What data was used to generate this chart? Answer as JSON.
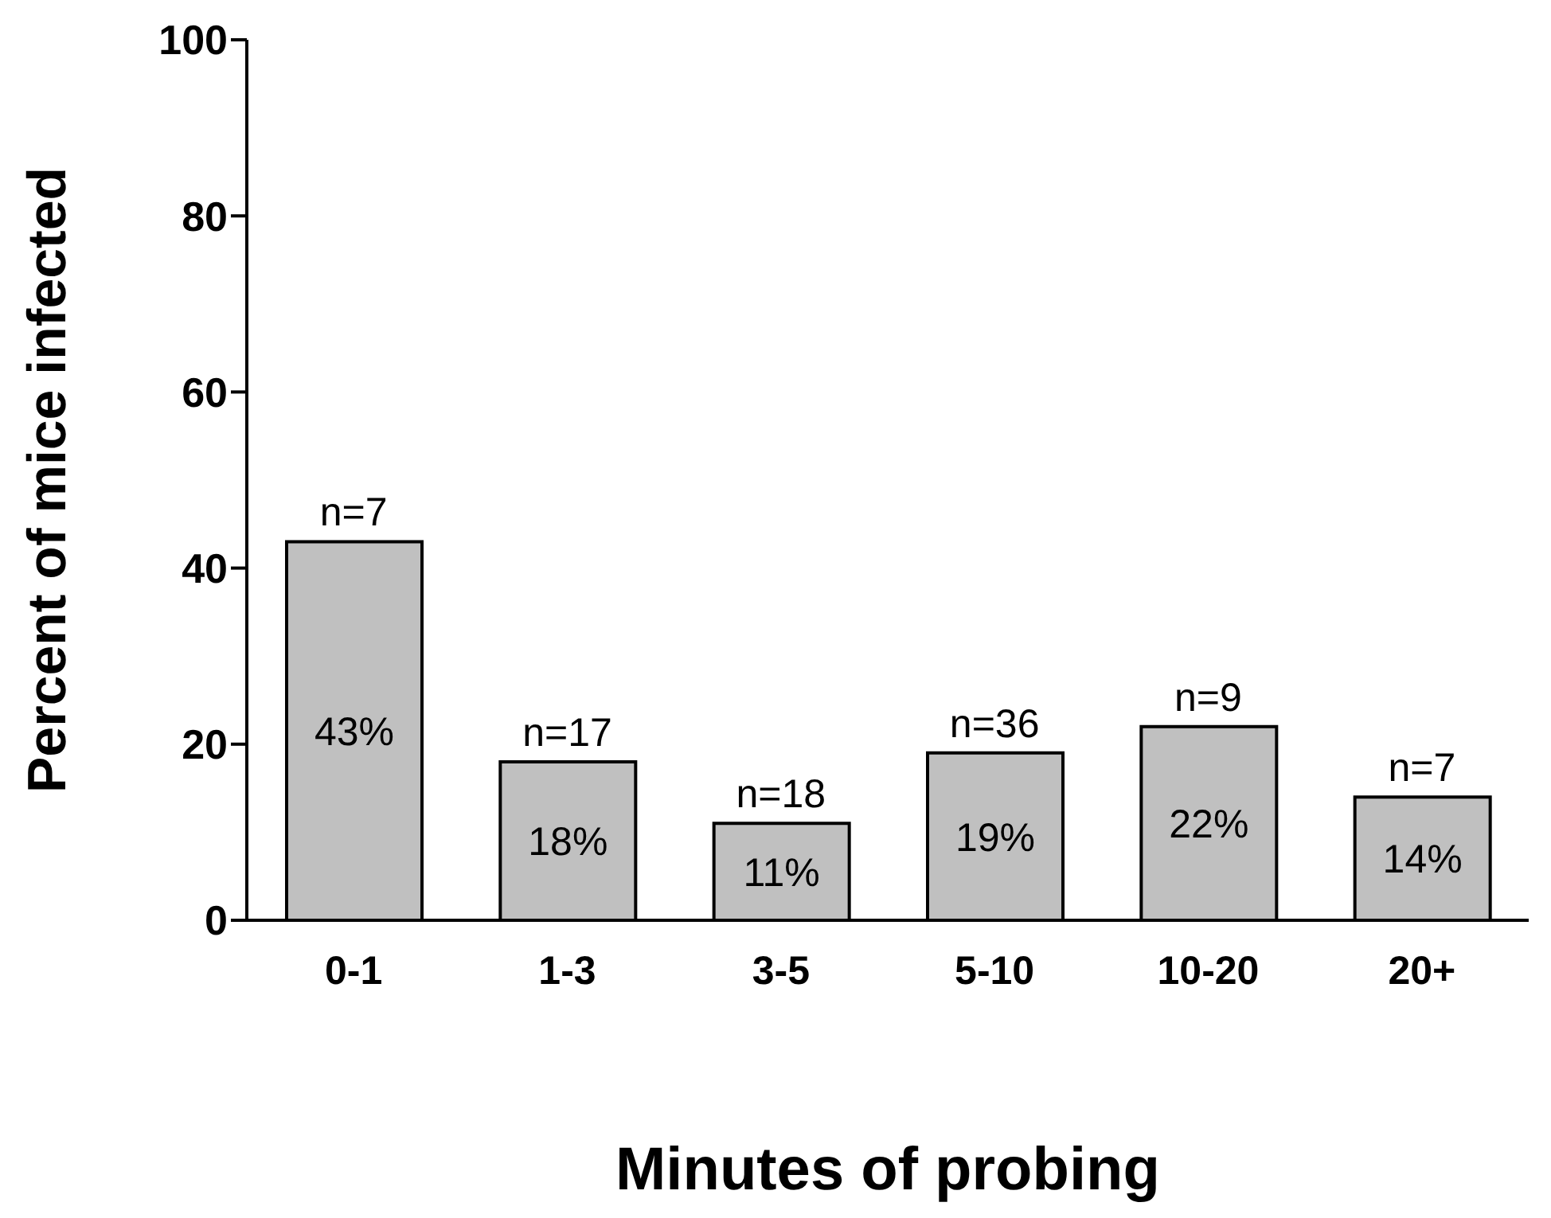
{
  "chart_data": {
    "type": "bar",
    "xlabel": "Minutes of probing",
    "ylabel": "Percent of mice infected",
    "categories": [
      "0-1",
      "1-3",
      "3-5",
      "5-10",
      "10-20",
      "20+"
    ],
    "values": [
      43,
      18,
      11,
      19,
      22,
      14
    ],
    "value_labels": [
      "43%",
      "18%",
      "11%",
      "19%",
      "22%",
      "14%"
    ],
    "color": "#c0c0c0",
    "ylim": [
      0,
      100
    ],
    "yticks": [
      0,
      20,
      40,
      60,
      80,
      100
    ],
    "grid": false,
    "legend": false,
    "annotations": [
      {
        "text": "n=7",
        "x": "0-1",
        "y": 43
      },
      {
        "text": "n=17",
        "x": "1-3",
        "y": 18
      },
      {
        "text": "n=18",
        "x": "3-5",
        "y": 11
      },
      {
        "text": "n=36",
        "x": "5-10",
        "y": 19
      },
      {
        "text": "n=9",
        "x": "10-20",
        "y": 22
      },
      {
        "text": "n=7",
        "x": "20+",
        "y": 14
      }
    ]
  }
}
